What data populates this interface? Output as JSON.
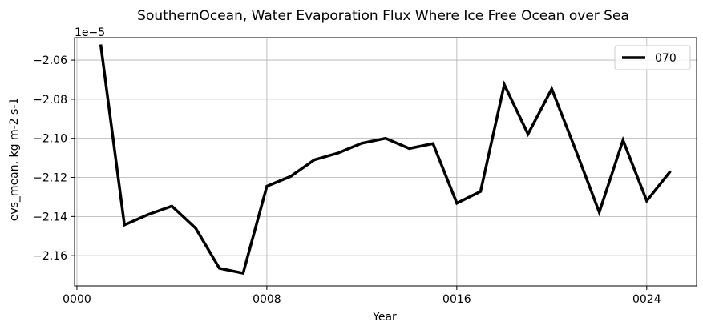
{
  "chart_data": {
    "type": "line",
    "title": "SouthernOcean, Water Evaporation Flux Where Ice Free Ocean over Sea",
    "xlabel": "Year",
    "ylabel": "evs_mean, kg m-2 s-1",
    "offset_text": "1e−5",
    "xlim": [
      -0.1,
      26.1
    ],
    "ylim": [
      -2.1755,
      -2.0485
    ],
    "x_ticks": [
      0,
      8,
      16,
      24
    ],
    "x_tick_labels": [
      "0000",
      "0008",
      "0016",
      "0024"
    ],
    "y_ticks": [
      -2.16,
      -2.14,
      -2.12,
      -2.1,
      -2.08,
      -2.06
    ],
    "y_tick_labels": [
      "−2.16",
      "−2.14",
      "−2.12",
      "−2.10",
      "−2.08",
      "−2.06"
    ],
    "grid": true,
    "legend_position": "top-right",
    "series": [
      {
        "name": "070",
        "color": "#000000",
        "x": [
          1,
          2,
          3,
          4,
          5,
          6,
          7,
          8,
          9,
          10,
          11,
          12,
          13,
          14,
          15,
          16,
          17,
          18,
          19,
          20,
          21,
          22,
          23,
          24,
          25
        ],
        "values": [
          -2.052,
          -2.1443,
          -2.139,
          -2.1347,
          -2.146,
          -2.1665,
          -2.169,
          -2.1245,
          -2.1195,
          -2.111,
          -2.1075,
          -2.1025,
          -2.1,
          -2.1052,
          -2.1027,
          -2.1332,
          -2.1272,
          -2.0725,
          -2.0978,
          -2.0747,
          -2.1057,
          -2.1378,
          -2.101,
          -2.132,
          -2.1168
        ]
      }
    ]
  }
}
